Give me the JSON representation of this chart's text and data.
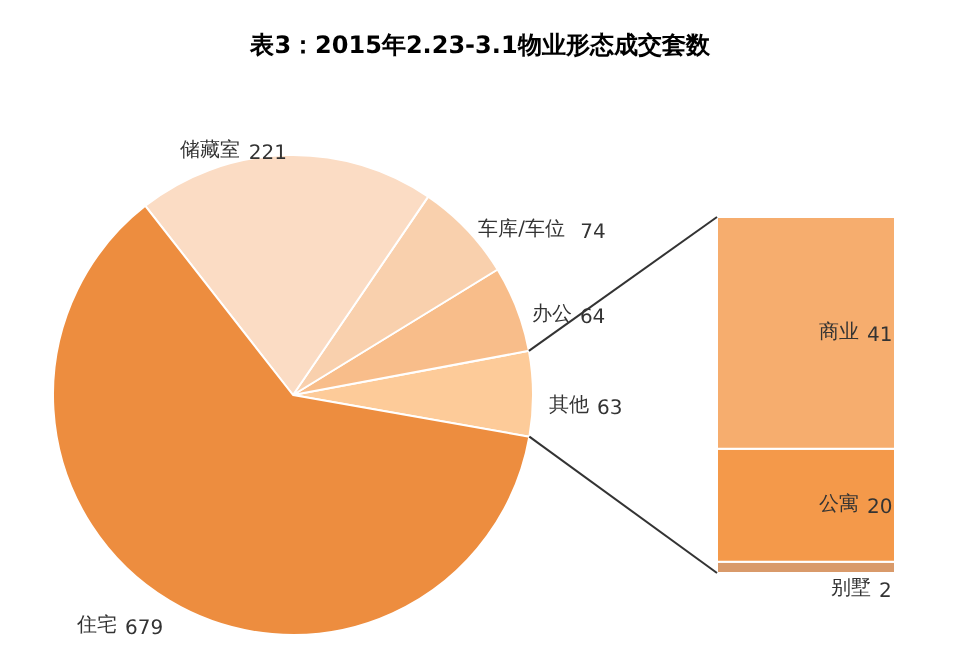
{
  "chart_data": [
    {
      "type": "pie",
      "title": "表3：2015年2.23-3.1物业形态成交套数",
      "categories": [
        "其他",
        "办公",
        "车库/车位",
        "储藏室",
        "住宅"
      ],
      "values": [
        63,
        64,
        74,
        221,
        679
      ],
      "colors": [
        "#fdcb99",
        "#f8bd8a",
        "#f9d0ad",
        "#fbdcc4",
        "#ed8d3f"
      ],
      "data_labels": true
    },
    {
      "type": "bar",
      "stacked": true,
      "categories": [
        null
      ],
      "series": [
        {
          "name": "别墅",
          "color": "#d99a6a",
          "values": [
            2
          ]
        },
        {
          "name": "公寓",
          "color": "#f4994a",
          "values": [
            20
          ]
        },
        {
          "name": "商业",
          "color": "#f6ad6e",
          "values": [
            41
          ]
        }
      ],
      "data_labels": true
    }
  ]
}
